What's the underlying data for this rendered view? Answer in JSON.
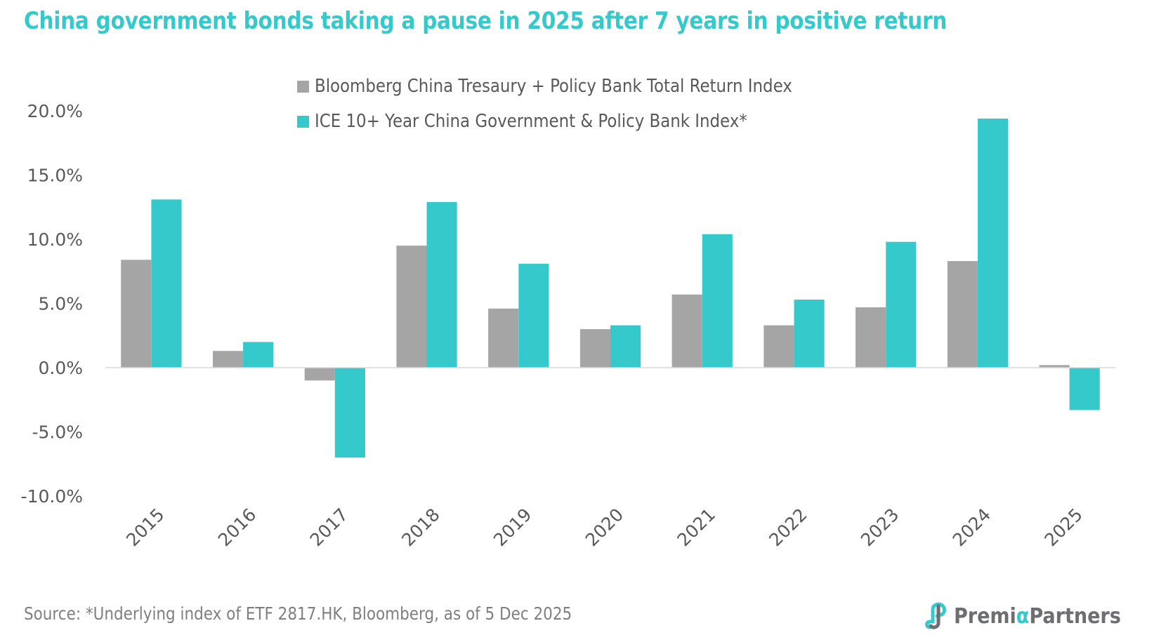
{
  "title": "China government bonds taking a pause in 2025 after 7 years in positive return",
  "source": "Source: *Underlying index of ETF 2817.HK, Bloomberg, as of 5 Dec 2025",
  "logo": {
    "prefix": "Premi",
    "alpha": "α",
    "suffix": "Partners",
    "icon": "premia-logo-icon"
  },
  "colors": {
    "bloomberg": "#a5a5a5",
    "ice": "#35c9cb",
    "title": "#35c9cb",
    "axis_line": "#d9d9d9"
  },
  "chart_data": {
    "type": "bar",
    "title": "China government bonds taking a pause in 2025 after 7 years in positive return",
    "xlabel": "",
    "ylabel": "",
    "categories": [
      "2015",
      "2016",
      "2017",
      "2018",
      "2019",
      "2020",
      "2021",
      "2022",
      "2023",
      "2024",
      "2025"
    ],
    "series": [
      {
        "name": "Bloomberg China Tresaury + Policy Bank Total Return Index",
        "color": "#a5a5a5",
        "values": [
          8.4,
          1.3,
          -1.0,
          9.5,
          4.6,
          3.0,
          5.7,
          3.3,
          4.7,
          8.3,
          0.2
        ]
      },
      {
        "name": "ICE 10+ Year China Government & Policy Bank Index*",
        "color": "#35c9cb",
        "values": [
          13.1,
          2.0,
          -7.0,
          12.9,
          8.1,
          3.3,
          10.4,
          5.3,
          9.8,
          19.4,
          -3.3
        ]
      }
    ],
    "ylim": [
      -10,
      20
    ],
    "yticks": [
      20,
      15,
      10,
      5,
      0,
      -5,
      -10
    ],
    "ytick_labels": [
      "20.0%",
      "15.0%",
      "10.0%",
      "5.0%",
      "0.0%",
      "-5.0%",
      "-10.0%"
    ],
    "grid": false,
    "legend_position": "top-center",
    "x_tick_rotation": -45
  }
}
